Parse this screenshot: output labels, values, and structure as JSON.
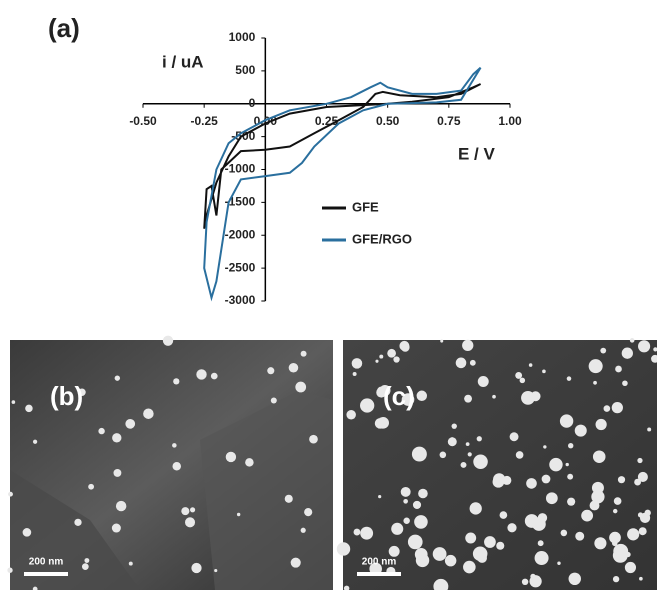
{
  "chart_data": {
    "type": "line",
    "panel_label": "(a)",
    "y_label": "i / uA",
    "x_label": "E / V",
    "xlim": [
      -0.5,
      1.0
    ],
    "xticks": [
      {
        "value": -0.5,
        "label": "-0.50"
      },
      {
        "value": -0.25,
        "label": "-0.25"
      },
      {
        "value": 0,
        "label": "0.00"
      },
      0.25,
      {
        "value": 0.5,
        "label": "0.50"
      },
      0.75,
      {
        "value": 1.0,
        "label": "1.00"
      }
    ],
    "ylim": [
      -3000,
      1000
    ],
    "yticks": [
      1000,
      500,
      0,
      -500,
      -1000,
      -1500,
      -2000,
      -2500,
      -3000
    ],
    "series": [
      {
        "name": "GFE",
        "color": "#111111",
        "x": [
          0.88,
          0.85,
          0.75,
          0.6,
          0.5,
          0.25,
          0.1,
          0.0,
          -0.1,
          -0.15,
          -0.2,
          -0.24,
          -0.25,
          -0.24,
          -0.22,
          -0.2,
          -0.18,
          -0.1,
          0.0,
          0.1,
          0.2,
          0.3,
          0.4,
          0.45,
          0.48,
          0.55,
          0.7,
          0.8,
          0.88
        ],
        "values": [
          300,
          250,
          100,
          30,
          0,
          -50,
          -150,
          -300,
          -500,
          -800,
          -1200,
          -1700,
          -1900,
          -1300,
          -1250,
          -1700,
          -1000,
          -720,
          -700,
          -650,
          -450,
          -250,
          -50,
          150,
          180,
          130,
          100,
          150,
          300
        ]
      },
      {
        "name": "GFE/RGO",
        "color": "#2a6f9e",
        "x": [
          0.88,
          0.85,
          0.8,
          0.7,
          0.6,
          0.5,
          0.47,
          0.43,
          0.35,
          0.25,
          0.1,
          0.0,
          -0.1,
          -0.15,
          -0.2,
          -0.24,
          -0.25,
          -0.22,
          -0.2,
          -0.15,
          -0.1,
          0.0,
          0.1,
          0.15,
          0.2,
          0.3,
          0.4,
          0.5,
          0.6,
          0.7,
          0.8,
          0.88
        ],
        "values": [
          550,
          450,
          200,
          150,
          150,
          250,
          320,
          250,
          100,
          0,
          -100,
          -250,
          -450,
          -600,
          -1000,
          -1800,
          -2500,
          -2950,
          -2700,
          -1500,
          -1150,
          -1100,
          -1050,
          -900,
          -650,
          -300,
          -100,
          0,
          10,
          20,
          60,
          550
        ]
      }
    ]
  },
  "images": [
    {
      "label": "(b)",
      "scale": "200 nm"
    },
    {
      "label": "(c)",
      "scale": "200 nm"
    }
  ]
}
